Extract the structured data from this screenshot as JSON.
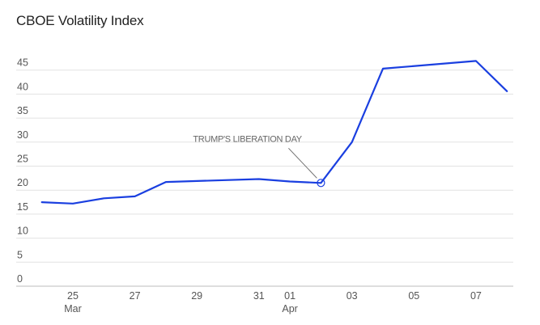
{
  "chart_data": {
    "type": "line",
    "title": "CBOE Volatility Index",
    "xlabel": "",
    "ylabel": "",
    "ylim": [
      0,
      50
    ],
    "yticks": [
      0,
      5,
      10,
      15,
      20,
      25,
      30,
      35,
      40,
      45
    ],
    "grid": true,
    "x_ticks": [
      {
        "date": "2025-03-25",
        "label": "25",
        "sublabel": "Mar"
      },
      {
        "date": "2025-03-27",
        "label": "27",
        "sublabel": ""
      },
      {
        "date": "2025-03-29",
        "label": "29",
        "sublabel": ""
      },
      {
        "date": "2025-03-31",
        "label": "31",
        "sublabel": ""
      },
      {
        "date": "2025-04-01",
        "label": "01",
        "sublabel": "Apr"
      },
      {
        "date": "2025-04-03",
        "label": "03",
        "sublabel": ""
      },
      {
        "date": "2025-04-05",
        "label": "05",
        "sublabel": ""
      },
      {
        "date": "2025-04-07",
        "label": "07",
        "sublabel": ""
      }
    ],
    "series": [
      {
        "color": "#1a3fe0",
        "points": [
          {
            "x": "2025-03-24",
            "y": 17.5
          },
          {
            "x": "2025-03-25",
            "y": 17.2
          },
          {
            "x": "2025-03-26",
            "y": 18.3
          },
          {
            "x": "2025-03-27",
            "y": 18.7
          },
          {
            "x": "2025-03-28",
            "y": 21.7
          },
          {
            "x": "2025-03-31",
            "y": 22.3
          },
          {
            "x": "2025-04-01",
            "y": 21.8
          },
          {
            "x": "2025-04-02",
            "y": 21.5
          },
          {
            "x": "2025-04-03",
            "y": 30.0
          },
          {
            "x": "2025-04-04",
            "y": 45.3
          },
          {
            "x": "2025-04-07",
            "y": 46.9
          },
          {
            "x": "2025-04-08",
            "y": 40.6
          }
        ]
      }
    ],
    "annotations": [
      {
        "x": "2025-04-02",
        "y": 21.5,
        "text": "TRUMP'S LIBERATION DAY"
      }
    ]
  }
}
